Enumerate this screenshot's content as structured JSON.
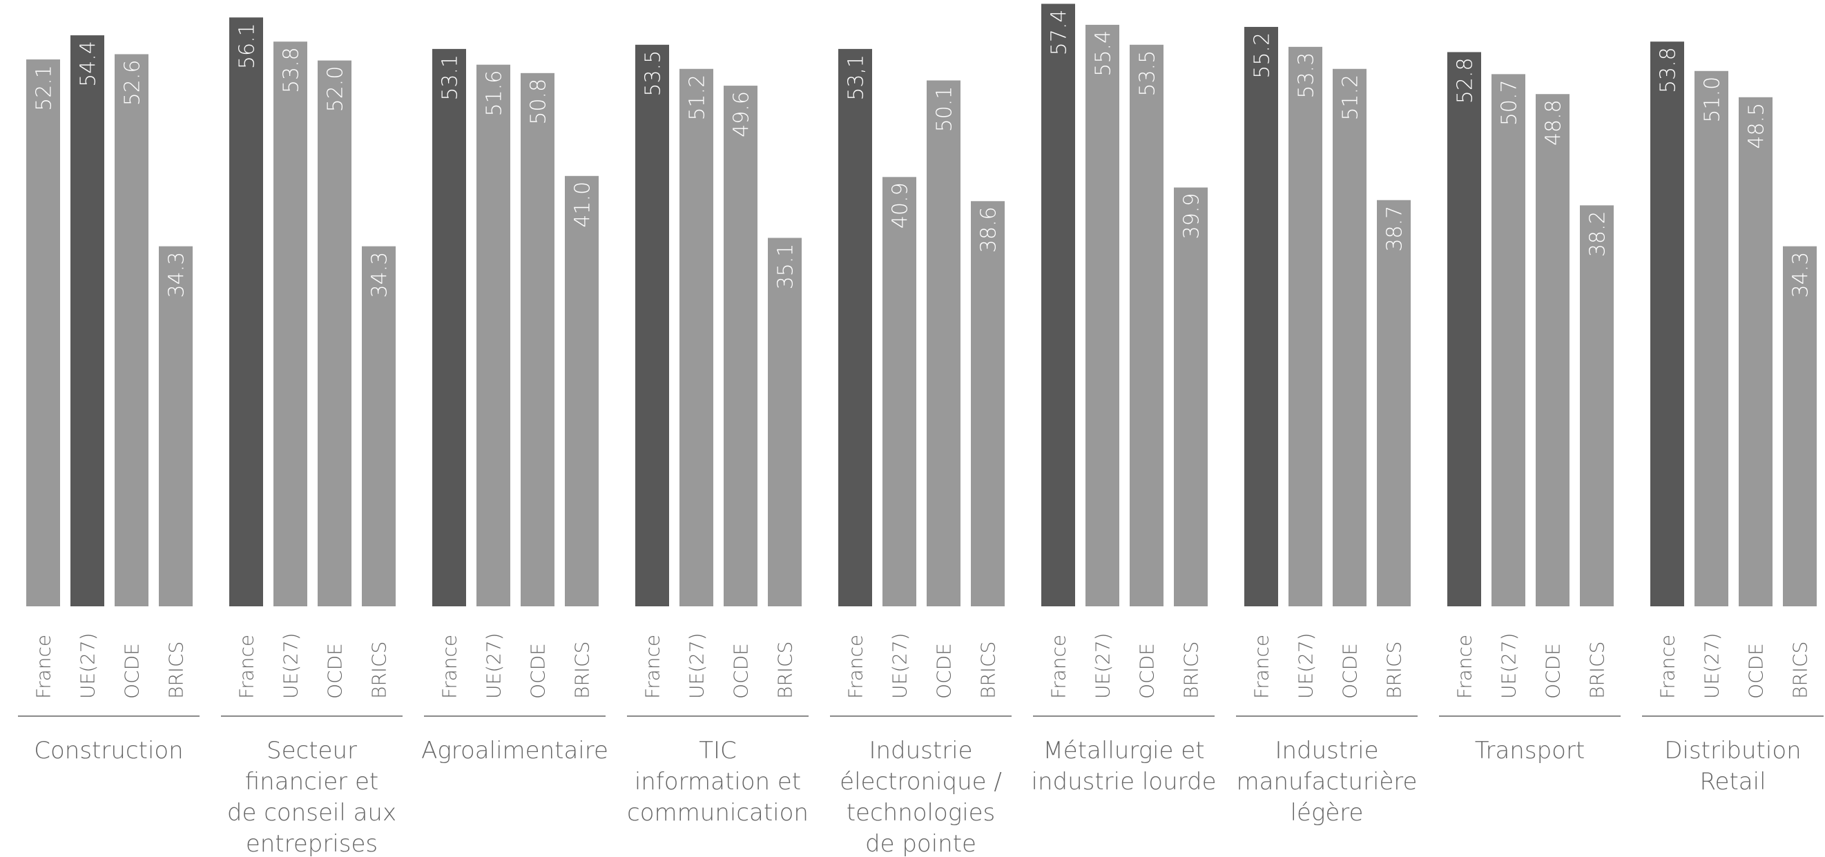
{
  "chart_data": {
    "type": "bar",
    "title": "",
    "xlabel": "",
    "ylabel": "",
    "ylim": [
      0,
      60
    ],
    "grid": false,
    "legend": "none",
    "series_names": [
      "France",
      "UE(27)",
      "OCDE",
      "BRICS"
    ],
    "colors": {
      "France": "#585858",
      "others": "#999999",
      "label_text": "#666666",
      "rule": "#8a8a8a"
    },
    "groups": [
      {
        "label_lines": [
          "Construction"
        ],
        "series_values": [
          52.1,
          54.4,
          52.6,
          34.3
        ],
        "value_labels": [
          "52.1",
          "54.4",
          "52.6",
          "34.3"
        ],
        "highlight": 1
      },
      {
        "label_lines": [
          "Secteur",
          "financier et",
          "de conseil aux",
          "entreprises"
        ],
        "series_values": [
          56.1,
          53.8,
          52.0,
          34.3
        ],
        "value_labels": [
          "56.1",
          "53.8",
          "52.0",
          "34.3"
        ],
        "highlight": 0
      },
      {
        "label_lines": [
          "Agroalimentaire"
        ],
        "series_values": [
          53.1,
          51.6,
          50.8,
          41.0
        ],
        "value_labels": [
          "53.1",
          "51.6",
          "50.8",
          "41.0"
        ],
        "highlight": 0
      },
      {
        "label_lines": [
          "TIC",
          "information et",
          "communication"
        ],
        "series_values": [
          53.5,
          51.2,
          49.6,
          35.1
        ],
        "value_labels": [
          "53.5",
          "51.2",
          "49.6",
          "35.1"
        ],
        "highlight": 0
      },
      {
        "label_lines": [
          "Industrie",
          "électronique /",
          "technologies",
          "de pointe"
        ],
        "series_values": [
          53.1,
          40.9,
          50.1,
          38.6
        ],
        "value_labels": [
          "53,1",
          "40.9",
          "50.1",
          "38.6"
        ],
        "highlight": 0
      },
      {
        "label_lines": [
          "Métallurgie et",
          "industrie lourde"
        ],
        "series_values": [
          57.4,
          55.4,
          53.5,
          39.9
        ],
        "value_labels": [
          "57.4",
          "55.4",
          "53.5",
          "39.9"
        ],
        "highlight": 0
      },
      {
        "label_lines": [
          "Industrie",
          "manufacturière",
          "légère"
        ],
        "series_values": [
          55.2,
          53.3,
          51.2,
          38.7
        ],
        "value_labels": [
          "55.2",
          "53.3",
          "51.2",
          "38.7"
        ],
        "highlight": 0
      },
      {
        "label_lines": [
          "Transport"
        ],
        "series_values": [
          52.8,
          50.7,
          48.8,
          38.2
        ],
        "value_labels": [
          "52.8",
          "50.7",
          "48.8",
          "38.2"
        ],
        "highlight": 0
      },
      {
        "label_lines": [
          "Distribution",
          "Retail"
        ],
        "series_values": [
          53.8,
          51.0,
          48.5,
          34.3
        ],
        "value_labels": [
          "53.8",
          "51.0",
          "48.5",
          "34.3"
        ],
        "highlight": 0
      }
    ]
  }
}
